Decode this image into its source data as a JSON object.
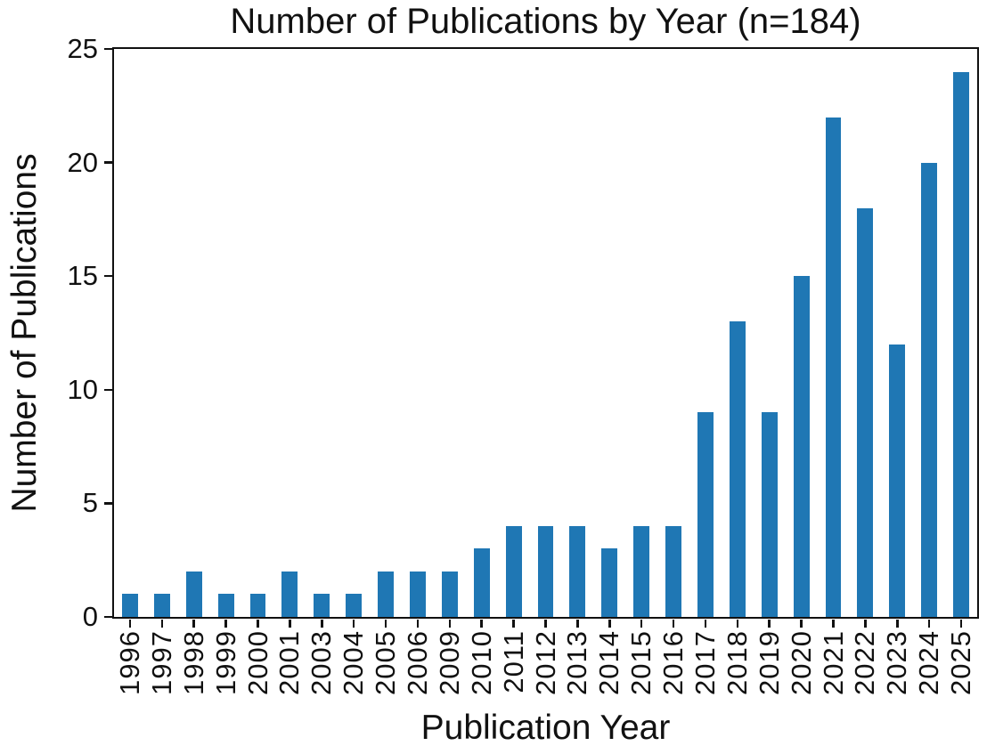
{
  "chart_data": {
    "type": "bar",
    "title": "Number of Publications by Year (n=184)",
    "xlabel": "Publication Year",
    "ylabel": "Number of Publications",
    "categories": [
      "1996",
      "1997",
      "1998",
      "1999",
      "2000",
      "2001",
      "2003",
      "2004",
      "2005",
      "2006",
      "2009",
      "2010",
      "2011",
      "2012",
      "2013",
      "2014",
      "2015",
      "2016",
      "2017",
      "2018",
      "2019",
      "2020",
      "2021",
      "2022",
      "2023",
      "2024",
      "2025"
    ],
    "values": [
      1,
      1,
      2,
      1,
      1,
      2,
      1,
      1,
      2,
      2,
      2,
      3,
      4,
      4,
      4,
      3,
      4,
      4,
      9,
      13,
      9,
      15,
      22,
      18,
      12,
      20,
      24
    ],
    "yticks": [
      0,
      5,
      10,
      15,
      20,
      25
    ],
    "ylim": [
      0,
      25
    ],
    "bar_color": "#1f77b4",
    "axis_color": "#111111",
    "background_color": "#ffffff",
    "grid": false,
    "legend_position": "none"
  }
}
